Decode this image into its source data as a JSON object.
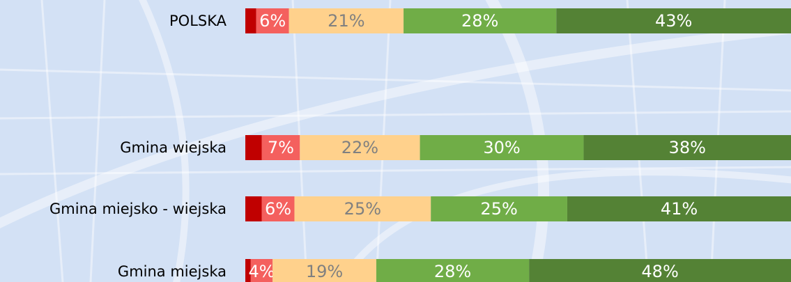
{
  "chart_data": {
    "type": "stacked_bar_horizontal",
    "categories": [
      "POLSKA",
      "Gmina wiejska",
      "Gmina miejsko - wiejska",
      "Gmina miejska"
    ],
    "xlim": [
      0,
      100
    ],
    "series": [
      {
        "color": "#c00000",
        "values": [
          2,
          3,
          3,
          1
        ]
      },
      {
        "color": "#f4605e",
        "label_color": "#ffffff",
        "values": [
          6,
          7,
          6,
          4
        ],
        "value_labels": [
          "6%",
          "7%",
          "6%",
          "4%"
        ]
      },
      {
        "color": "#ffd18c",
        "label_color": "#808080",
        "values": [
          21,
          22,
          25,
          19
        ],
        "value_labels": [
          "21%",
          "22%",
          "25%",
          "19%"
        ]
      },
      {
        "color": "#70ad47",
        "label_color": "#ffffff",
        "values": [
          28,
          30,
          25,
          28
        ],
        "value_labels": [
          "28%",
          "30%",
          "25%",
          "28%"
        ]
      },
      {
        "color": "#548235",
        "label_color": "#ffffff",
        "values": [
          43,
          38,
          41,
          48
        ],
        "value_labels": [
          "43%",
          "38%",
          "41%",
          "48%"
        ]
      }
    ]
  }
}
